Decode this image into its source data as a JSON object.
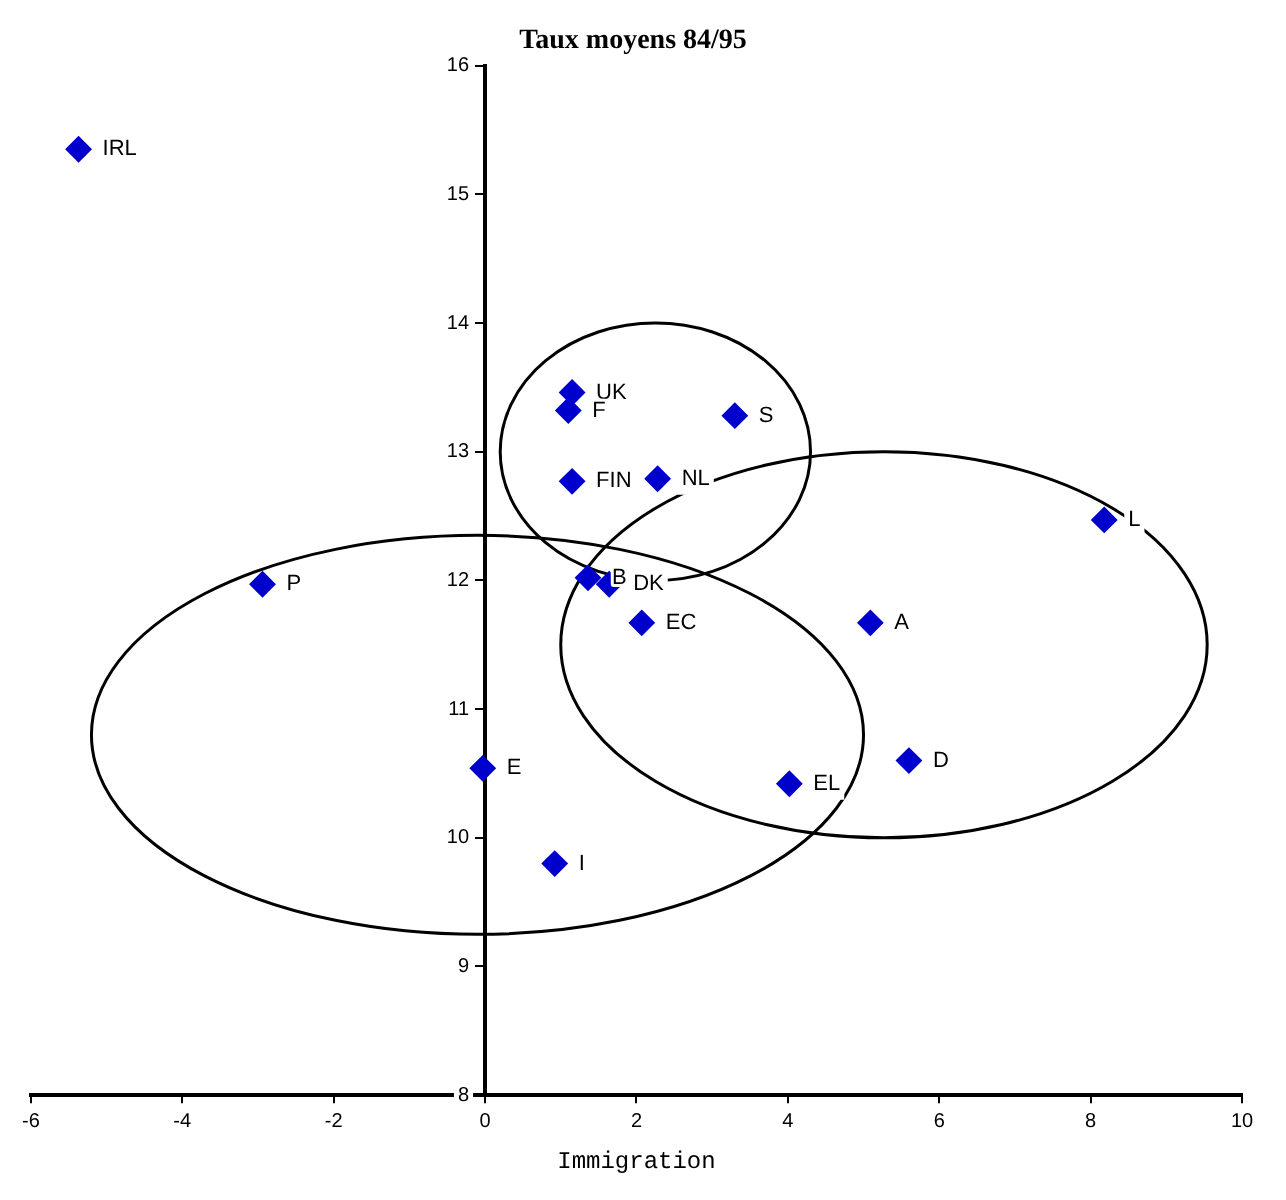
{
  "chart_data": {
    "type": "scatter",
    "title": "Taux moyens 84/95",
    "xlabel": "Immigration",
    "x": [
      -5.37,
      -2.94,
      1.15,
      1.1,
      3.3,
      1.15,
      2.28,
      8.18,
      1.36,
      1.64,
      2.07,
      5.09,
      -0.03,
      4.02,
      5.6,
      0.92
    ],
    "values": [
      15.35,
      11.97,
      13.46,
      13.32,
      13.28,
      12.77,
      12.79,
      12.47,
      12.02,
      11.97,
      11.67,
      11.67,
      10.54,
      10.42,
      10.6,
      9.8
    ],
    "color": "#0000cc",
    "marker": "diamond",
    "grid": false,
    "legend": false,
    "xlim": [
      -6,
      10
    ],
    "xticks": [
      -6,
      -4,
      -2,
      0,
      2,
      4,
      6,
      8,
      10
    ],
    "ylim": [
      8,
      16
    ],
    "yticks": [
      8,
      9,
      10,
      11,
      12,
      13,
      14,
      15,
      16
    ],
    "annotations": [
      {
        "text": "IRL",
        "x": -5.37,
        "y": 15.35
      },
      {
        "text": "P",
        "x": -2.94,
        "y": 11.97
      },
      {
        "text": "UK",
        "x": 1.15,
        "y": 13.46
      },
      {
        "text": "F",
        "x": 1.1,
        "y": 13.32
      },
      {
        "text": "S",
        "x": 3.3,
        "y": 13.28
      },
      {
        "text": "FIN",
        "x": 1.15,
        "y": 12.77
      },
      {
        "text": "NL",
        "x": 2.28,
        "y": 12.79
      },
      {
        "text": "L",
        "x": 8.18,
        "y": 12.47
      },
      {
        "text": "B",
        "x": 1.36,
        "y": 12.02
      },
      {
        "text": "DK",
        "x": 1.64,
        "y": 11.97
      },
      {
        "text": "EC",
        "x": 2.07,
        "y": 11.67
      },
      {
        "text": "A",
        "x": 5.09,
        "y": 11.67
      },
      {
        "text": "E",
        "x": -0.03,
        "y": 10.54
      },
      {
        "text": "EL",
        "x": 4.02,
        "y": 10.42
      },
      {
        "text": "D",
        "x": 5.6,
        "y": 10.6
      },
      {
        "text": "I",
        "x": 0.92,
        "y": 9.8
      }
    ]
  }
}
